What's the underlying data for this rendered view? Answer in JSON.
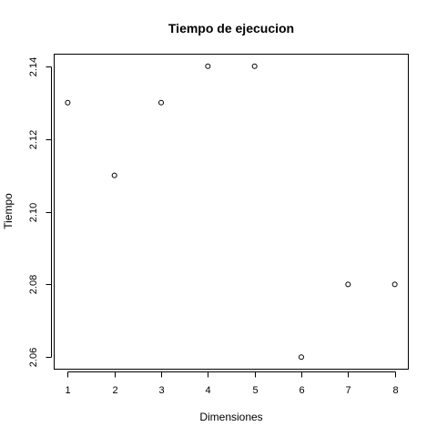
{
  "chart_data": {
    "type": "scatter",
    "title": "Tiempo de ejecucion",
    "xlabel": "Dimensiones",
    "ylabel": "Tiempo",
    "x": [
      1,
      2,
      3,
      4,
      5,
      6,
      7,
      8
    ],
    "y": [
      2.13,
      2.11,
      2.13,
      2.14,
      2.14,
      2.06,
      2.08,
      2.08
    ],
    "xlim": [
      0.72,
      8.28
    ],
    "ylim": [
      2.0568,
      2.1432
    ],
    "xticks": [
      1,
      2,
      3,
      4,
      5,
      6,
      7,
      8
    ],
    "xtick_labels": [
      "1",
      "2",
      "3",
      "4",
      "5",
      "6",
      "7",
      "8"
    ],
    "yticks": [
      2.06,
      2.08,
      2.1,
      2.12,
      2.14
    ],
    "ytick_labels": [
      "2.06",
      "2.08",
      "2.10",
      "2.12",
      "2.14"
    ],
    "marker": "open-circle",
    "grid": false,
    "colors": {
      "point": "#000000",
      "background": "#ffffff"
    }
  }
}
